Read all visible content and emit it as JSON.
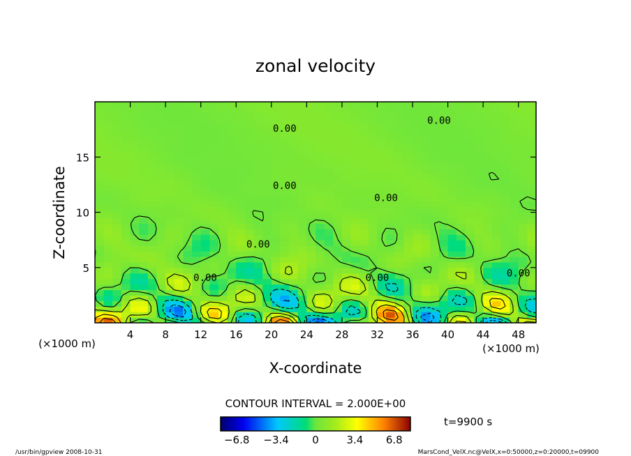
{
  "chart_data": {
    "type": "heatmap",
    "title": "zonal velocity",
    "xlabel": "X-coordinate",
    "ylabel": "Z-coordinate",
    "x_unit": "(×1000 m)",
    "z_unit": "(×1000 m)",
    "xlim": [
      0,
      50
    ],
    "ylim": [
      0,
      20
    ],
    "x_ticks": [
      4,
      8,
      12,
      16,
      20,
      24,
      28,
      32,
      36,
      40,
      44,
      48
    ],
    "y_ticks": [
      5,
      10,
      15
    ],
    "contour_interval_text": "CONTOUR INTERVAL = 2.000E+00",
    "contour_labels": [
      {
        "x": 21.5,
        "z": 17.3,
        "text": "0.00"
      },
      {
        "x": 39.0,
        "z": 18.0,
        "text": "0.00"
      },
      {
        "x": 21.5,
        "z": 12.1,
        "text": "0.00"
      },
      {
        "x": 33.0,
        "z": 11.0,
        "text": "0.00"
      },
      {
        "x": 18.5,
        "z": 6.8,
        "text": "0.00"
      },
      {
        "x": 12.5,
        "z": 3.8,
        "text": "0.00"
      },
      {
        "x": 32.0,
        "z": 3.8,
        "text": "0.00"
      },
      {
        "x": 48.0,
        "z": 4.2,
        "text": "0.00"
      }
    ],
    "colorbar": {
      "range": [
        -8.2,
        8.2
      ],
      "tick_values": [
        -6.8,
        -3.4,
        0,
        3.4,
        6.8
      ],
      "tick_labels": [
        "−6.8",
        "−3.4",
        "0",
        "3.4",
        "6.8"
      ]
    },
    "time_label": "t=9900 s",
    "grid": false
  },
  "footer": {
    "left": "/usr/bin/gpview   2008-10-31",
    "right": "MarsCond_VelX.nc@VelX,x=0:50000,z=0:20000,t=09900"
  }
}
